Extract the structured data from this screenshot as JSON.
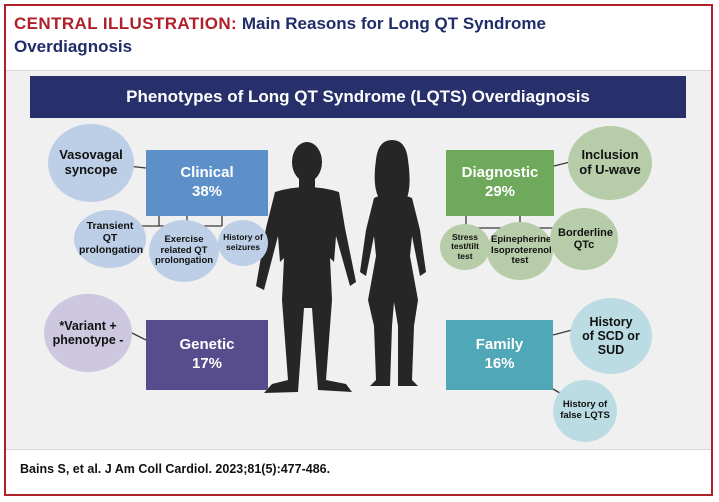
{
  "header": {
    "label": "CENTRAL ILLUSTRATION:",
    "title": "Main Reasons for Long QT Syndrome Overdiagnosis"
  },
  "banner": "Phenotypes of Long QT Syndrome (LQTS) Overdiagnosis",
  "clinical": {
    "name": "Clinical",
    "pct": "38%",
    "reasons": [
      "Vasovagal syncope",
      "Transient QT prolongation",
      "Exercise related QT prolongation",
      "History of seizures"
    ]
  },
  "diagnostic": {
    "name": "Diagnostic",
    "pct": "29%",
    "reasons": [
      "Inclusion of U-wave",
      "Stress test/tilt test",
      "Epinepherine/ Isoproterenol test",
      "Borderline QTc"
    ]
  },
  "genetic": {
    "name": "Genetic",
    "pct": "17%",
    "reasons": [
      "*Variant + phenotype -"
    ]
  },
  "family": {
    "name": "Family",
    "pct": "16%",
    "reasons": [
      "History of SCD or SUD",
      "History of false LQTS"
    ]
  },
  "citation": "Bains S, et al. J Am Coll Cardiol. 2023;81(5):477-486.",
  "colors": {
    "clinical": "#5d8fc9",
    "diagnostic": "#6fa95b",
    "genetic": "#574d8d",
    "family": "#4fa7b8",
    "banner": "#27306b",
    "accent_red": "#b0202a",
    "silhouette": "#262626"
  }
}
